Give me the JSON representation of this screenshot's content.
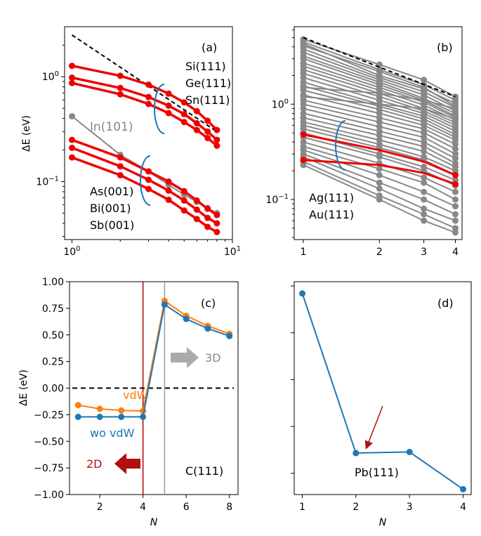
{
  "chart_data": [
    {
      "panel": "(a)",
      "type": "line",
      "xscale": "log",
      "yscale": "log",
      "xlim": [
        0.9,
        10
      ],
      "ylim": [
        0.028,
        3.0
      ],
      "xticks": [
        {
          "v": 1,
          "label": "10^0"
        },
        {
          "v": 10,
          "label": "10^1"
        }
      ],
      "yticks": [
        {
          "v": 1,
          "label": "10^0"
        },
        {
          "v": 0.1,
          "label": "10^-1"
        }
      ],
      "ylabel": "ΔE (eV)",
      "labels": {
        "group_upper": [
          "Si(111)",
          "Ge(111)",
          "Sn(111)"
        ],
        "in_label": "In(101)",
        "group_lower": [
          "As(001)",
          "Bi(001)",
          "Sb(001)"
        ]
      },
      "series": [
        {
          "name": "Si(111)",
          "color": "#ee0000",
          "x": [
            1,
            2,
            3,
            4,
            5,
            6,
            7,
            8
          ],
          "y": [
            1.27,
            1.02,
            0.84,
            0.69,
            0.57,
            0.47,
            0.38,
            0.31
          ]
        },
        {
          "name": "Ge(111)",
          "color": "#ee0000",
          "x": [
            1,
            2,
            3,
            4,
            5,
            6,
            7,
            8
          ],
          "y": [
            0.98,
            0.78,
            0.64,
            0.53,
            0.44,
            0.36,
            0.3,
            0.25
          ]
        },
        {
          "name": "Sn(111)",
          "color": "#ee0000",
          "x": [
            1,
            2,
            3,
            4,
            5,
            6,
            7,
            8
          ],
          "y": [
            0.87,
            0.68,
            0.55,
            0.45,
            0.37,
            0.31,
            0.26,
            0.22
          ]
        },
        {
          "name": "In(101)",
          "color": "#888888",
          "x": [
            1,
            2,
            3,
            4,
            5,
            6,
            7,
            8
          ],
          "y": [
            0.42,
            0.18,
            0.125,
            0.093,
            0.075,
            0.064,
            0.056,
            0.05
          ]
        },
        {
          "name": "As(001)",
          "color": "#ee0000",
          "x": [
            1,
            2,
            3,
            4,
            5,
            6,
            7,
            8
          ],
          "y": [
            0.25,
            0.17,
            0.125,
            0.1,
            0.081,
            0.066,
            0.055,
            0.048
          ]
        },
        {
          "name": "Bi(001)",
          "color": "#ee0000",
          "x": [
            1,
            2,
            3,
            4,
            5,
            6,
            7,
            8
          ],
          "y": [
            0.21,
            0.14,
            0.104,
            0.082,
            0.066,
            0.054,
            0.045,
            0.04
          ]
        },
        {
          "name": "Sb(001)",
          "color": "#ee0000",
          "x": [
            1,
            2,
            3,
            4,
            5,
            6,
            7,
            8
          ],
          "y": [
            0.17,
            0.115,
            0.085,
            0.067,
            0.053,
            0.044,
            0.037,
            0.033
          ]
        }
      ],
      "reference_line": {
        "x": [
          1,
          8
        ],
        "y": [
          2.5,
          0.3
        ]
      }
    },
    {
      "panel": "(b)",
      "type": "line",
      "xscale": "log",
      "yscale": "log",
      "xlim": [
        0.92,
        4.25
      ],
      "ylim": [
        0.038,
        6.5
      ],
      "xticks": [
        {
          "v": 1,
          "label": "1"
        },
        {
          "v": 2,
          "label": "2"
        },
        {
          "v": 3,
          "label": "3"
        },
        {
          "v": 4,
          "label": "4"
        }
      ],
      "yticks": [
        {
          "v": 1,
          "label": "10^0"
        },
        {
          "v": 0.1,
          "label": "10^-1"
        }
      ],
      "labels": {
        "group": [
          "Ag(111)",
          "Au(111)"
        ]
      },
      "grey_series": [
        [
          4.8,
          2.6,
          1.8,
          1.2
        ],
        [
          4.5,
          2.3,
          1.6,
          1.1
        ],
        [
          4.3,
          2.0,
          1.45,
          1.02
        ],
        [
          4.1,
          2.2,
          1.5,
          0.95
        ],
        [
          3.8,
          1.9,
          1.35,
          0.92
        ],
        [
          3.5,
          1.8,
          1.25,
          0.85
        ],
        [
          3.2,
          1.7,
          1.15,
          0.8
        ],
        [
          3.0,
          1.6,
          1.1,
          0.75
        ],
        [
          2.7,
          1.5,
          1.05,
          0.72
        ],
        [
          2.5,
          1.4,
          0.98,
          0.68
        ],
        [
          2.3,
          1.3,
          0.9,
          0.64
        ],
        [
          2.1,
          1.2,
          0.85,
          0.6
        ],
        [
          1.9,
          1.1,
          0.8,
          0.56
        ],
        [
          1.7,
          1.0,
          0.75,
          0.52
        ],
        [
          1.55,
          0.95,
          0.7,
          0.48
        ],
        [
          1.4,
          0.88,
          0.65,
          0.45
        ],
        [
          1.25,
          0.8,
          0.6,
          0.42
        ],
        [
          1.1,
          0.72,
          0.55,
          0.38
        ],
        [
          1.0,
          0.65,
          0.5,
          0.34
        ],
        [
          0.9,
          0.58,
          0.45,
          0.3
        ],
        [
          0.8,
          0.52,
          0.4,
          0.27
        ],
        [
          0.72,
          0.47,
          0.36,
          0.24
        ],
        [
          0.65,
          0.42,
          0.32,
          0.22
        ],
        [
          0.6,
          0.38,
          0.28,
          0.2
        ],
        [
          0.55,
          0.35,
          0.26,
          0.18
        ],
        [
          0.5,
          0.3,
          0.22,
          0.16
        ],
        [
          0.45,
          0.28,
          0.2,
          0.14
        ],
        [
          0.4,
          0.24,
          0.17,
          0.12
        ],
        [
          0.36,
          0.21,
          0.15,
          0.1
        ],
        [
          0.33,
          0.18,
          0.12,
          0.085
        ],
        [
          0.3,
          0.15,
          0.1,
          0.07
        ],
        [
          0.28,
          0.13,
          0.08,
          0.06
        ],
        [
          0.25,
          0.11,
          0.07,
          0.05
        ],
        [
          0.23,
          0.1,
          0.06,
          0.045
        ],
        [
          1.5,
          1.3,
          1.1,
          0.9
        ],
        [
          1.2,
          1.0,
          0.9,
          0.7
        ]
      ],
      "grey_x": [
        1,
        2,
        3,
        4
      ],
      "red_series": [
        {
          "name": "Ag(111)",
          "x": [
            1,
            2,
            3,
            4
          ],
          "y": [
            0.48,
            0.33,
            0.25,
            0.18
          ]
        },
        {
          "name": "Au(111)",
          "x": [
            1,
            2,
            3,
            4
          ],
          "y": [
            0.26,
            0.23,
            0.19,
            0.145
          ]
        }
      ],
      "reference_line": {
        "x": [
          1,
          4
        ],
        "y": [
          5.0,
          1.2
        ]
      }
    },
    {
      "panel": "(c)",
      "type": "line",
      "xlim": [
        0.6,
        8.4
      ],
      "ylim": [
        -1.0,
        1.0
      ],
      "xticks": [
        2,
        4,
        6,
        8
      ],
      "yticks": [
        1.0,
        0.75,
        0.5,
        0.25,
        0.0,
        -0.25,
        -0.5,
        -0.75,
        -1.0
      ],
      "ytick_labels": [
        "1.00",
        "0.75",
        "0.50",
        "0.25",
        "0.00",
        "−0.25",
        "−0.50",
        "−0.75",
        "−1.00"
      ],
      "xlabel": "N",
      "ylabel": "ΔE (eV)",
      "series": [
        {
          "name": "vdW",
          "color": "#ff7f0e",
          "x": [
            1,
            2,
            3,
            4,
            5,
            6,
            7,
            8
          ],
          "y": [
            -0.16,
            -0.195,
            -0.21,
            -0.215,
            0.82,
            0.68,
            0.585,
            0.51
          ]
        },
        {
          "name": "wo vdW",
          "color": "#1f77b4",
          "x": [
            1,
            2,
            3,
            4,
            5,
            6,
            7,
            8
          ],
          "y": [
            -0.27,
            -0.27,
            -0.27,
            -0.27,
            0.785,
            0.65,
            0.56,
            0.49
          ]
        }
      ],
      "vlines": [
        {
          "x": 4,
          "color": "#aa0000"
        },
        {
          "x": 5,
          "color": "#999999"
        }
      ],
      "hline": 0.0,
      "labels": {
        "vdw": "vdW",
        "wovdw": "wo vdW",
        "threeD": "3D",
        "twoD": "2D",
        "material": "C(111)"
      }
    },
    {
      "panel": "(d)",
      "type": "line",
      "xlim": [
        0.85,
        4.15
      ],
      "ylim": [
        0.0,
        1.0
      ],
      "xticks": [
        1,
        2,
        3,
        4
      ],
      "xlabel": "N",
      "series": [
        {
          "name": "Pb(111)",
          "color": "#1f77b4",
          "x": [
            1,
            2,
            3,
            4
          ],
          "y": [
            0.945,
            0.195,
            0.2,
            0.025
          ]
        }
      ],
      "labels": {
        "material": "Pb(111)"
      }
    }
  ]
}
